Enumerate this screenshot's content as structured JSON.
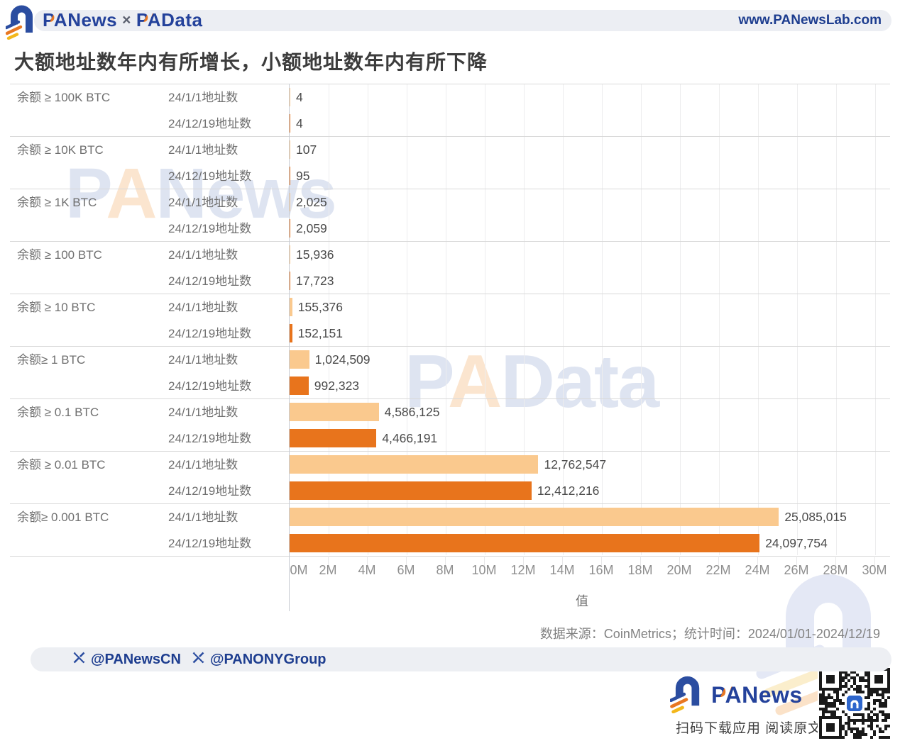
{
  "header": {
    "logo_text_1": "PANews",
    "logo_sep": "×",
    "logo_text_2": "PAData",
    "website": "www.PANewsLab.com"
  },
  "title": "大额地址数年内有所增长，小额地址数年内有所下降",
  "chart_data": {
    "type": "bar",
    "orientation": "horizontal",
    "categories": [
      "余额 ≥ 100K BTC",
      "余额 ≥ 10K BTC",
      "余额 ≥ 1K BTC",
      "余额 ≥ 100 BTC",
      "余额 ≥ 10 BTC",
      "余额≥ 1 BTC",
      "余额 ≥ 0.1 BTC",
      "余额 ≥ 0.01 BTC",
      "余额≥ 0.001 BTC"
    ],
    "series": [
      {
        "name": "24/1/1地址数",
        "color": "#FAC98E",
        "values": [
          4,
          107,
          2025,
          15936,
          155376,
          1024509,
          4586125,
          12762547,
          25085015
        ]
      },
      {
        "name": "24/12/19地址数",
        "color": "#E8741C",
        "values": [
          4,
          95,
          2059,
          17723,
          152151,
          992323,
          4466191,
          12412216,
          24097754
        ]
      }
    ],
    "xlabel": "值",
    "x_ticks": [
      "0M",
      "2M",
      "4M",
      "6M",
      "8M",
      "10M",
      "12M",
      "14M",
      "16M",
      "18M",
      "20M",
      "22M",
      "24M",
      "26M",
      "28M",
      "30M"
    ],
    "xlim": [
      0,
      30000000
    ],
    "grid": true,
    "legend_position": "none",
    "value_labels": "right-of-bar, thousands separated"
  },
  "source_note": "数据来源：CoinMetrics；统计时间：2024/01/01-2024/12/19",
  "social": {
    "handles": [
      "@PANewsCN",
      "@PANONYGroup"
    ]
  },
  "watermarks": {
    "wm1": "PANews",
    "wm2": "PAData"
  },
  "footer_brand": {
    "name": "PANews",
    "tagline": "扫码下载应用 阅读原文"
  },
  "colors": {
    "brand_blue": "#24429B",
    "brand_orange": "#E87722",
    "bar_light": "#FAC98E",
    "bar_dark": "#E8741C"
  }
}
